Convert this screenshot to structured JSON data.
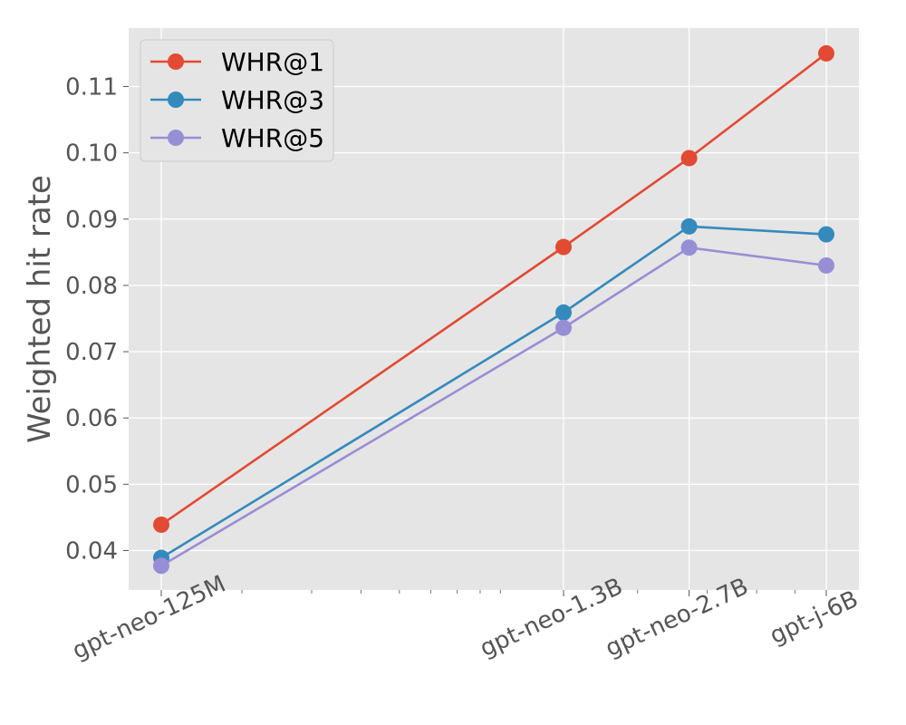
{
  "chart_data": {
    "type": "line",
    "title": "",
    "xlabel": "",
    "ylabel": "Weighted hit rate",
    "x_scale": "log",
    "categories": [
      "gpt-neo-125M",
      "gpt-neo-1.3B",
      "gpt-neo-2.7B",
      "gpt-j-6B"
    ],
    "x": [
      0.125,
      1.3,
      2.7,
      6
    ],
    "ylim": [
      0.034,
      0.119
    ],
    "yticks": [
      0.04,
      0.05,
      0.06,
      0.07,
      0.08,
      0.09,
      0.1,
      0.11
    ],
    "ytick_labels": [
      "0.04",
      "0.05",
      "0.06",
      "0.07",
      "0.08",
      "0.09",
      "0.10",
      "0.11"
    ],
    "grid": true,
    "legend_position": "top-left",
    "series": [
      {
        "name": "WHR@1",
        "color": "#E24A33",
        "values": [
          0.0439,
          0.0858,
          0.0992,
          0.115
        ]
      },
      {
        "name": "WHR@3",
        "color": "#348ABD",
        "values": [
          0.0389,
          0.0759,
          0.0889,
          0.0877
        ]
      },
      {
        "name": "WHR@5",
        "color": "#988ED5",
        "values": [
          0.0377,
          0.0736,
          0.0857,
          0.083
        ]
      }
    ]
  }
}
